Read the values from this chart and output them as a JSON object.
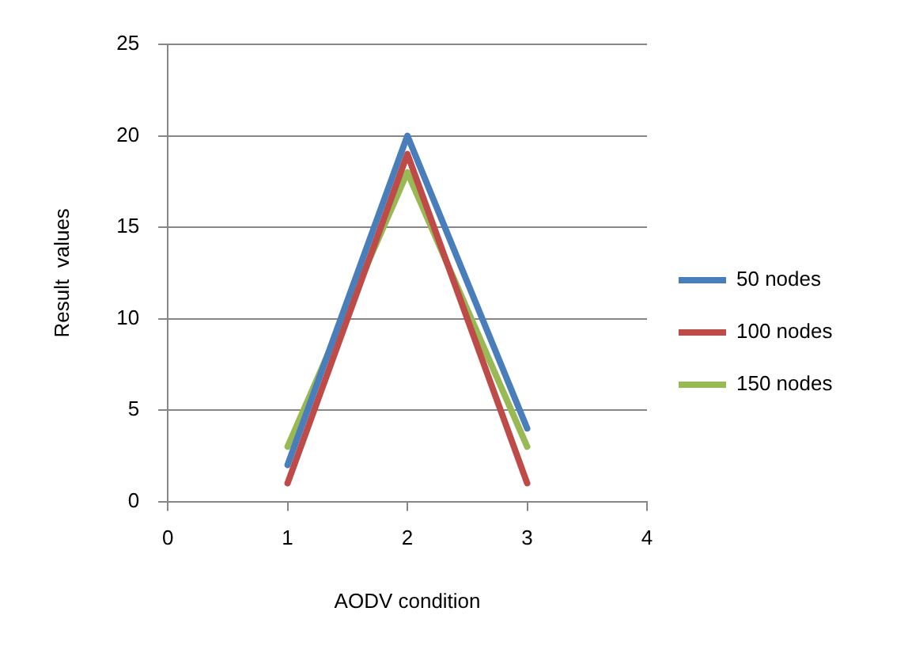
{
  "chart_data": {
    "type": "line",
    "xlabel": "AODV condition",
    "ylabel": "Result  values",
    "xlim": [
      0,
      4
    ],
    "xticks": [
      0,
      1,
      2,
      3,
      4
    ],
    "ylim": [
      0,
      25
    ],
    "yticks": [
      0,
      5,
      10,
      15,
      20,
      25
    ],
    "grid": "y",
    "legend": "right",
    "marker": "none",
    "line_style": "solid",
    "series": [
      {
        "name": "50 nodes",
        "color": "#4a7ebb",
        "x": [
          1,
          2,
          3
        ],
        "values": [
          2,
          20,
          4
        ]
      },
      {
        "name": "100 nodes",
        "color": "#be4b48",
        "x": [
          1,
          2,
          3
        ],
        "values": [
          1,
          19,
          1
        ]
      },
      {
        "name": "150 nodes",
        "color": "#98b954",
        "x": [
          1,
          2,
          3
        ],
        "values": [
          3,
          18,
          3
        ]
      }
    ]
  }
}
